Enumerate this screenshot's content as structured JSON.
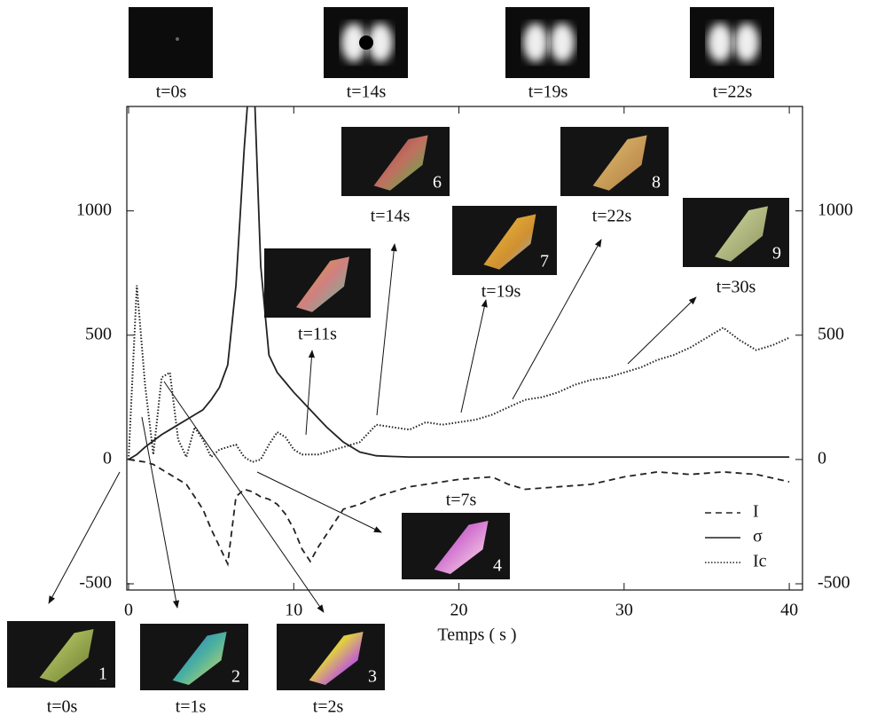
{
  "chart_data": {
    "type": "line",
    "x_label": "Temps ( s )",
    "x": [
      0,
      0.5,
      1,
      1.5,
      2,
      2.5,
      3,
      3.5,
      4,
      4.5,
      5,
      5.5,
      6,
      6.5,
      7,
      7.5,
      8,
      8.5,
      9,
      9.5,
      10,
      10.5,
      11,
      11.5,
      12,
      13,
      14,
      15,
      16,
      17,
      18,
      19,
      20,
      21,
      22,
      23,
      24,
      25,
      26,
      27,
      28,
      29,
      30,
      31,
      32,
      33,
      34,
      35,
      36,
      37,
      38,
      39,
      40
    ],
    "series": [
      {
        "name": "I",
        "color": "#222222",
        "dash": "dashed",
        "values": [
          0,
          -5,
          -10,
          -20,
          -40,
          -60,
          -80,
          -100,
          -150,
          -200,
          -280,
          -350,
          -420,
          -150,
          -120,
          -130,
          -150,
          -160,
          -180,
          -220,
          -280,
          -360,
          -410,
          -350,
          -300,
          -200,
          -180,
          -150,
          -130,
          -110,
          -100,
          -90,
          -80,
          -75,
          -70,
          -100,
          -120,
          -115,
          -110,
          -105,
          -100,
          -85,
          -70,
          -60,
          -50,
          -55,
          -60,
          -55,
          -50,
          -55,
          -60,
          -75,
          -90
        ]
      },
      {
        "name": "σ",
        "color": "#222222",
        "dash": "solid",
        "values": [
          0,
          20,
          50,
          75,
          100,
          120,
          140,
          160,
          180,
          200,
          240,
          290,
          380,
          700,
          1250,
          1700,
          780,
          420,
          350,
          310,
          270,
          235,
          200,
          165,
          130,
          70,
          30,
          15,
          12,
          10,
          10,
          10,
          10,
          10,
          10,
          10,
          10,
          10,
          10,
          10,
          10,
          10,
          10,
          10,
          10,
          10,
          10,
          10,
          10,
          10,
          10,
          10,
          10
        ]
      },
      {
        "name": "Ic",
        "color": "#222222",
        "dash": "dotted",
        "values": [
          0,
          700,
          300,
          20,
          330,
          350,
          80,
          10,
          130,
          80,
          10,
          40,
          50,
          60,
          10,
          -10,
          0,
          60,
          110,
          90,
          40,
          20,
          20,
          20,
          30,
          50,
          70,
          140,
          130,
          120,
          150,
          140,
          150,
          160,
          180,
          210,
          240,
          250,
          270,
          300,
          320,
          330,
          350,
          370,
          400,
          420,
          450,
          490,
          530,
          480,
          440,
          460,
          490
        ]
      }
    ],
    "xlim": [
      0,
      40.8
    ],
    "xticks": [
      0,
      10,
      20,
      30,
      40
    ],
    "ylim": [
      -525,
      1420
    ],
    "yticks": [
      -500,
      0,
      500,
      1000
    ],
    "y2lim": [
      -525,
      1420
    ],
    "y2ticks": [
      -500,
      0,
      500,
      1000
    ],
    "legend": "lower right",
    "conoscopic_images": [
      {
        "label": "t=0s"
      },
      {
        "label": "t=14s"
      },
      {
        "label": "t=19s"
      },
      {
        "label": "t=22s"
      }
    ],
    "crystal_images": [
      {
        "number": "1",
        "label": "t=0s"
      },
      {
        "number": "2",
        "label": "t=1s"
      },
      {
        "number": "3",
        "label": "t=2s"
      },
      {
        "number": "4",
        "label": "t=7s"
      },
      {
        "label": "t=11s"
      },
      {
        "number": "6",
        "label": "t=14s"
      },
      {
        "number": "7",
        "label": "t=19s"
      },
      {
        "number": "8",
        "label": "t=22s"
      },
      {
        "number": "9",
        "label": "t=30s"
      }
    ]
  }
}
